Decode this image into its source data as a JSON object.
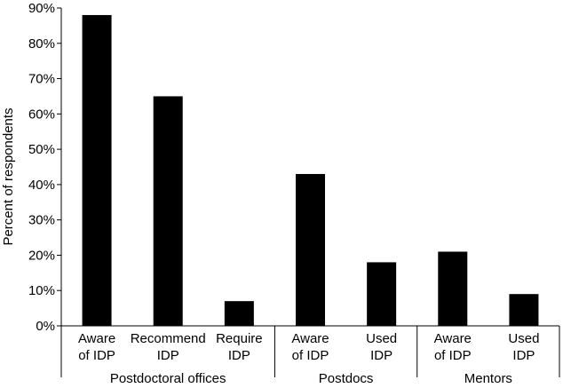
{
  "chart_data": {
    "type": "bar",
    "title": "",
    "xlabel": "",
    "ylabel": "Percent of respondents",
    "ylim": [
      0,
      90
    ],
    "yticks": [
      "0%",
      "10%",
      "20%",
      "30%",
      "40%",
      "50%",
      "60%",
      "70%",
      "80%",
      "90%"
    ],
    "grid": false,
    "legend": "none",
    "bar_color": "#000000",
    "categories": [
      [
        "Aware",
        "of IDP"
      ],
      [
        "Recommend",
        "IDP"
      ],
      [
        "Require",
        "IDP"
      ],
      [
        "Aware",
        "of IDP"
      ],
      [
        "Used",
        "IDP"
      ],
      [
        "Aware",
        "of IDP"
      ],
      [
        "Used",
        "IDP"
      ]
    ],
    "values": [
      88,
      65,
      7,
      43,
      18,
      21,
      9
    ],
    "groups": [
      {
        "label": "Postdoctoral offices",
        "count": 3
      },
      {
        "label": "Postdocs",
        "count": 2
      },
      {
        "label": "Mentors",
        "count": 2
      }
    ]
  }
}
